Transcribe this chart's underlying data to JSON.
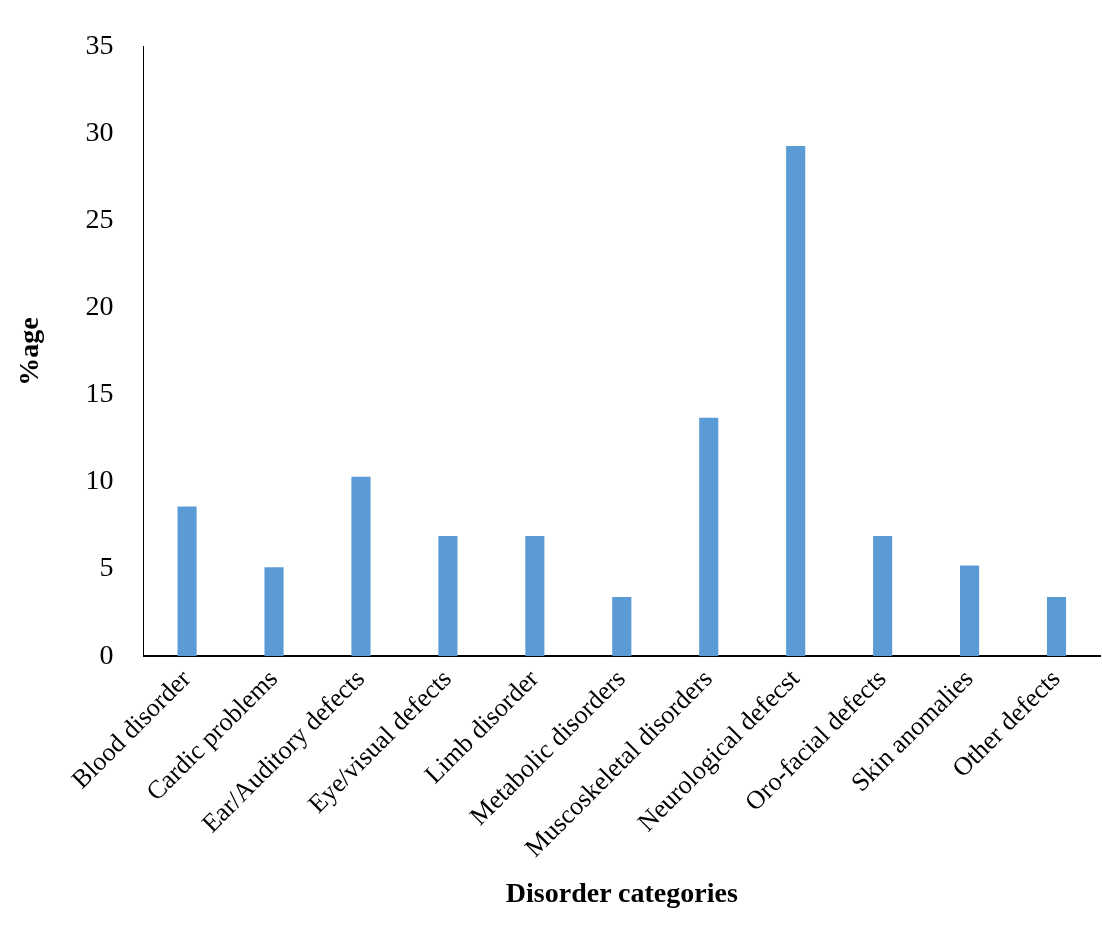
{
  "chart_data": {
    "type": "bar",
    "xlabel": "Disorder categories",
    "ylabel": "%age",
    "categories": [
      "Blood disorder",
      "Cardic problems",
      "Ear/Auditory defects",
      "Eye/visual defects",
      "Limb disorder",
      "Metabolic disorders",
      "Muscoskeletal disorders",
      "Neurological defecst",
      "Oro-facial defects",
      "Skin anomalies",
      "Other defects"
    ],
    "values": [
      8.6,
      5.1,
      10.3,
      6.9,
      6.9,
      3.4,
      13.7,
      29.3,
      6.9,
      5.2,
      3.4
    ],
    "color": "#5b9bd5",
    "ylim": [
      0,
      35
    ],
    "yticks": [
      0,
      5,
      10,
      15,
      20,
      25,
      30,
      35
    ],
    "grid": false,
    "legend": false
  }
}
